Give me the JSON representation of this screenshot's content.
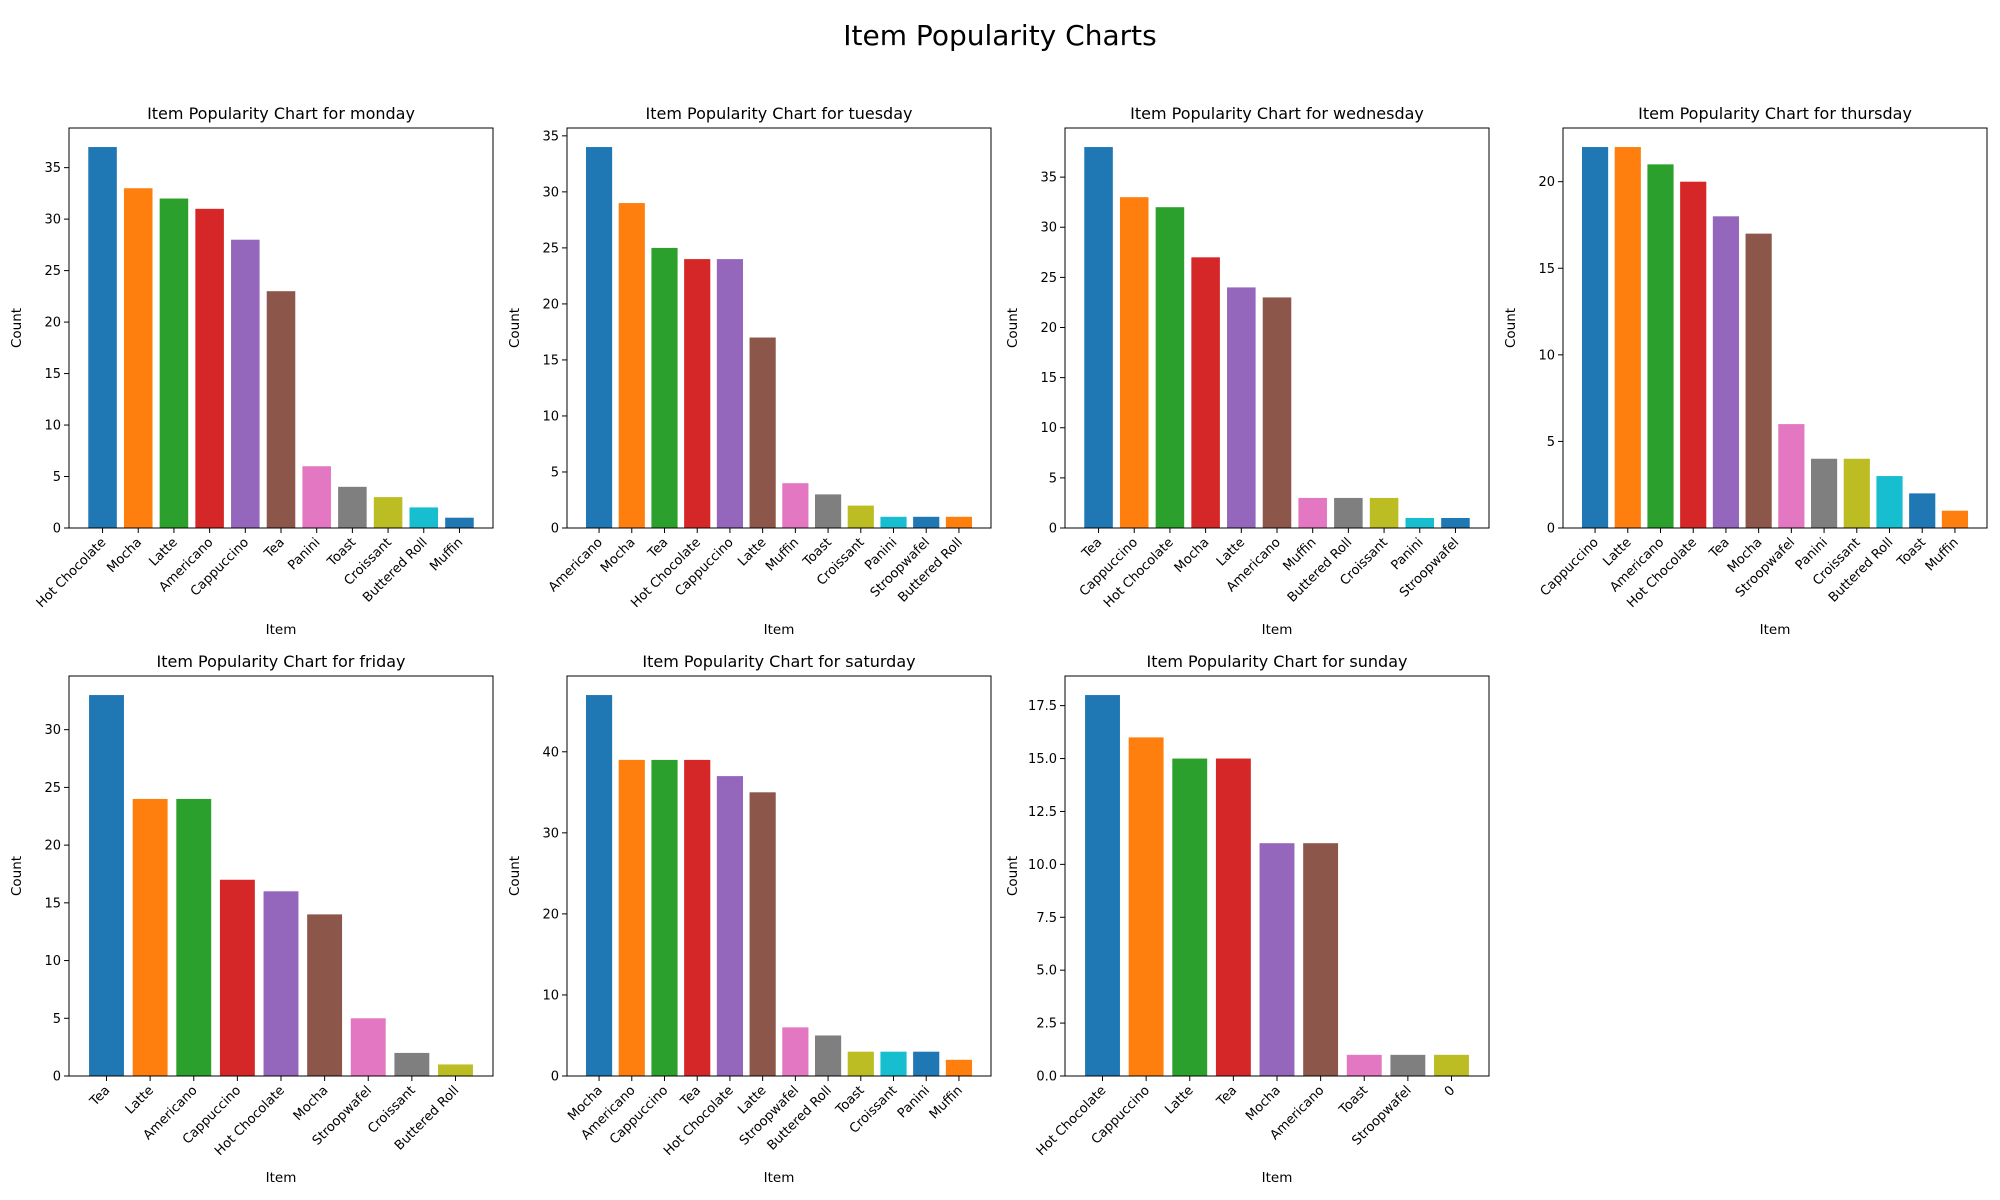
{
  "figure": {
    "title": "Item Popularity Charts"
  },
  "chart_data": [
    {
      "type": "bar",
      "title": "Item Popularity Chart for monday",
      "xlabel": "Item",
      "ylabel": "Count",
      "categories": [
        "Hot Chocolate",
        "Mocha",
        "Latte",
        "Americano",
        "Cappuccino",
        "Tea",
        "Panini",
        "Toast",
        "Croissant",
        "Buttered Roll",
        "Muffin"
      ],
      "values": [
        37,
        33,
        32,
        31,
        28,
        23,
        6,
        4,
        3,
        2,
        1
      ],
      "ylim": [
        0,
        38.85
      ],
      "yticks": [
        0,
        5,
        10,
        15,
        20,
        25,
        30,
        35
      ],
      "ytick_labels": [
        "0",
        "5",
        "10",
        "15",
        "20",
        "25",
        "30",
        "35"
      ]
    },
    {
      "type": "bar",
      "title": "Item Popularity Chart for tuesday",
      "xlabel": "Item",
      "ylabel": "Count",
      "categories": [
        "Americano",
        "Mocha",
        "Tea",
        "Hot Chocolate",
        "Cappuccino",
        "Latte",
        "Muffin",
        "Toast",
        "Croissant",
        "Panini",
        "Stroopwafel",
        "Buttered Roll"
      ],
      "values": [
        34,
        29,
        25,
        24,
        24,
        17,
        4,
        3,
        2,
        1,
        1,
        1
      ],
      "ylim": [
        0,
        35.7
      ],
      "yticks": [
        0,
        5,
        10,
        15,
        20,
        25,
        30,
        35
      ],
      "ytick_labels": [
        "0",
        "5",
        "10",
        "15",
        "20",
        "25",
        "30",
        "35"
      ]
    },
    {
      "type": "bar",
      "title": "Item Popularity Chart for wednesday",
      "xlabel": "Item",
      "ylabel": "Count",
      "categories": [
        "Tea",
        "Cappuccino",
        "Hot Chocolate",
        "Mocha",
        "Latte",
        "Americano",
        "Muffin",
        "Buttered Roll",
        "Croissant",
        "Panini",
        "Stroopwafel"
      ],
      "values": [
        38,
        33,
        32,
        27,
        24,
        23,
        3,
        3,
        3,
        1,
        1
      ],
      "ylim": [
        0,
        39.9
      ],
      "yticks": [
        0,
        5,
        10,
        15,
        20,
        25,
        30,
        35
      ],
      "ytick_labels": [
        "0",
        "5",
        "10",
        "15",
        "20",
        "25",
        "30",
        "35"
      ]
    },
    {
      "type": "bar",
      "title": "Item Popularity Chart for thursday",
      "xlabel": "Item",
      "ylabel": "Count",
      "categories": [
        "Cappuccino",
        "Latte",
        "Americano",
        "Hot Chocolate",
        "Tea",
        "Mocha",
        "Stroopwafel",
        "Panini",
        "Croissant",
        "Buttered Roll",
        "Toast",
        "Muffin"
      ],
      "values": [
        22,
        22,
        21,
        20,
        18,
        17,
        6,
        4,
        4,
        3,
        2,
        1
      ],
      "ylim": [
        0,
        23.1
      ],
      "yticks": [
        0,
        5,
        10,
        15,
        20
      ],
      "ytick_labels": [
        "0",
        "5",
        "10",
        "15",
        "20"
      ]
    },
    {
      "type": "bar",
      "title": "Item Popularity Chart for friday",
      "xlabel": "Item",
      "ylabel": "Count",
      "categories": [
        "Tea",
        "Latte",
        "Americano",
        "Cappuccino",
        "Hot Chocolate",
        "Mocha",
        "Stroopwafel",
        "Croissant",
        "Buttered Roll"
      ],
      "values": [
        33,
        24,
        24,
        17,
        16,
        14,
        5,
        2,
        1
      ],
      "ylim": [
        0,
        34.65
      ],
      "yticks": [
        0,
        5,
        10,
        15,
        20,
        25,
        30
      ],
      "ytick_labels": [
        "0",
        "5",
        "10",
        "15",
        "20",
        "25",
        "30"
      ]
    },
    {
      "type": "bar",
      "title": "Item Popularity Chart for saturday",
      "xlabel": "Item",
      "ylabel": "Count",
      "categories": [
        "Mocha",
        "Americano",
        "Cappuccino",
        "Tea",
        "Hot Chocolate",
        "Latte",
        "Stroopwafel",
        "Buttered Roll",
        "Toast",
        "Croissant",
        "Panini",
        "Muffin"
      ],
      "values": [
        47,
        39,
        39,
        39,
        37,
        35,
        6,
        5,
        3,
        3,
        3,
        2
      ],
      "ylim": [
        0,
        49.35
      ],
      "yticks": [
        0,
        10,
        20,
        30,
        40
      ],
      "ytick_labels": [
        "0",
        "10",
        "20",
        "30",
        "40"
      ]
    },
    {
      "type": "bar",
      "title": "Item Popularity Chart for sunday",
      "xlabel": "Item",
      "ylabel": "Count",
      "categories": [
        "Hot Chocolate",
        "Cappuccino",
        "Latte",
        "Tea",
        "Mocha",
        "Americano",
        "Toast",
        "Stroopwafel",
        "0"
      ],
      "values": [
        18,
        16,
        15,
        15,
        11,
        11,
        1,
        1,
        1
      ],
      "ylim": [
        0,
        18.9
      ],
      "yticks": [
        0,
        2.5,
        5,
        7.5,
        10,
        12.5,
        15,
        17.5
      ],
      "ytick_labels": [
        "0.0",
        "2.5",
        "5.0",
        "7.5",
        "10.0",
        "12.5",
        "15.0",
        "17.5"
      ]
    }
  ],
  "palette": [
    "#1f77b4",
    "#ff7f0e",
    "#2ca02c",
    "#d62728",
    "#9467bd",
    "#8c564b",
    "#e377c2",
    "#7f7f7f",
    "#bcbd22",
    "#17becf"
  ]
}
